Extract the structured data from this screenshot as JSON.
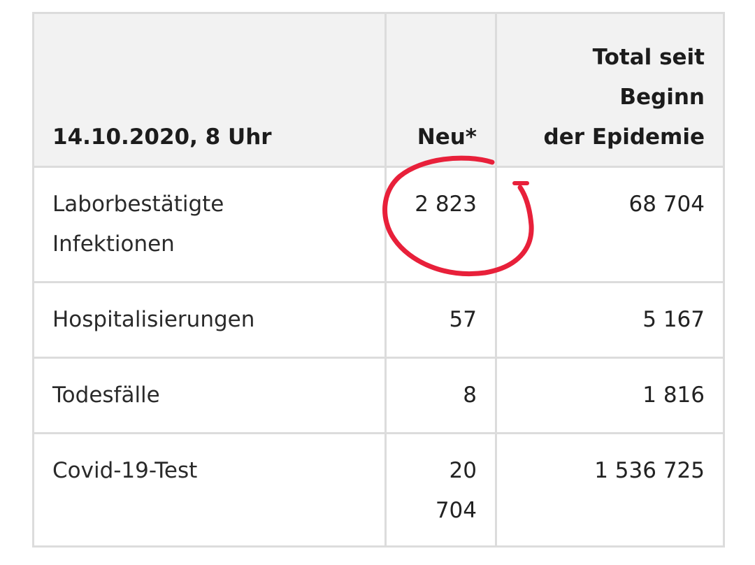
{
  "header": {
    "date_label": "14.10.2020, 8 Uhr",
    "new_label": "Neu*",
    "total_lines": [
      "Total seit",
      "Beginn",
      "der Epidemie"
    ]
  },
  "rows": [
    {
      "label_lines": [
        "Laborbestätigte",
        "Infektionen"
      ],
      "new": "2 823",
      "total": "68 704"
    },
    {
      "label_lines": [
        "Hospitalisierungen"
      ],
      "new": "57",
      "total": "5 167"
    },
    {
      "label_lines": [
        "Todesfälle"
      ],
      "new": "8",
      "total": "1 816"
    },
    {
      "label_lines": [
        "Covid-19-Test"
      ],
      "new_lines": [
        "20",
        "704"
      ],
      "total": "1 536 725"
    }
  ],
  "annotation": {
    "color": "#e8203a",
    "type": "hand-drawn circle around value"
  }
}
